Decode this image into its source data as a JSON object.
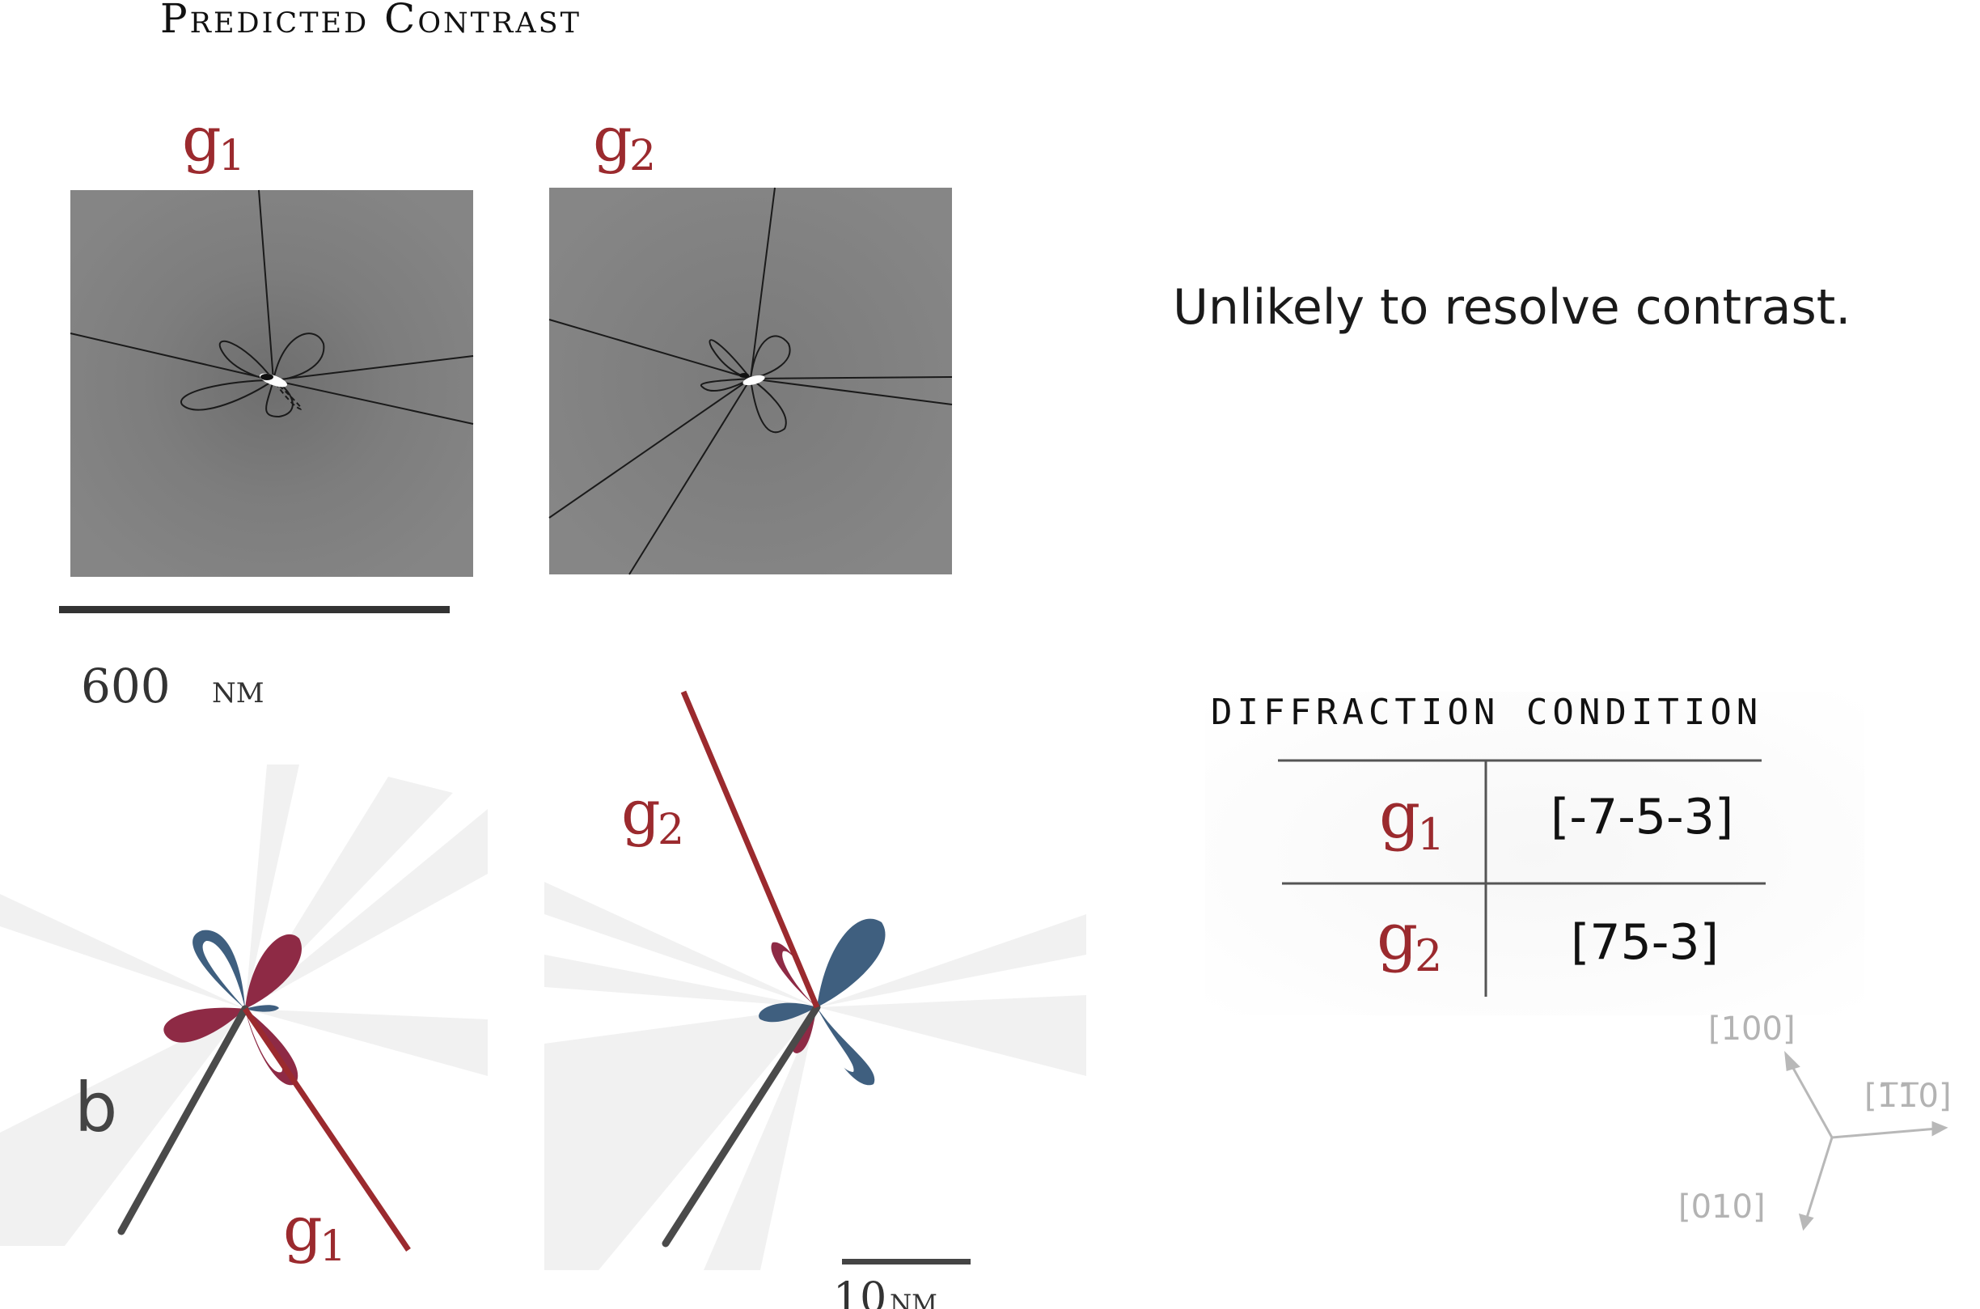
{
  "title": "Predicted Contrast",
  "panels": {
    "g1": {
      "letter": "g",
      "index": "1"
    },
    "g2": {
      "letter": "g",
      "index": "2"
    }
  },
  "scale_top": {
    "value": "600",
    "unit": "nm"
  },
  "message": "Unlikely to resolve contrast.",
  "burgers_label": "b",
  "diffraction_table": {
    "heading": "diffraction condition",
    "rows": [
      {
        "letter": "g",
        "index": "1",
        "value": "[-7-5-3]"
      },
      {
        "letter": "g",
        "index": "2",
        "value": "[75-3]"
      }
    ]
  },
  "scale_bottom": {
    "value": "10",
    "unit": "nm"
  },
  "axes": {
    "x_label": "[100]",
    "y_label": "[1̅1̅0]",
    "z_label": "[010]"
  },
  "colors": {
    "g_red": "#9b2a2e",
    "lobe_blue": "#3f5f7f",
    "lobe_red": "#8e2a45",
    "contrast_gray": "#808080"
  }
}
